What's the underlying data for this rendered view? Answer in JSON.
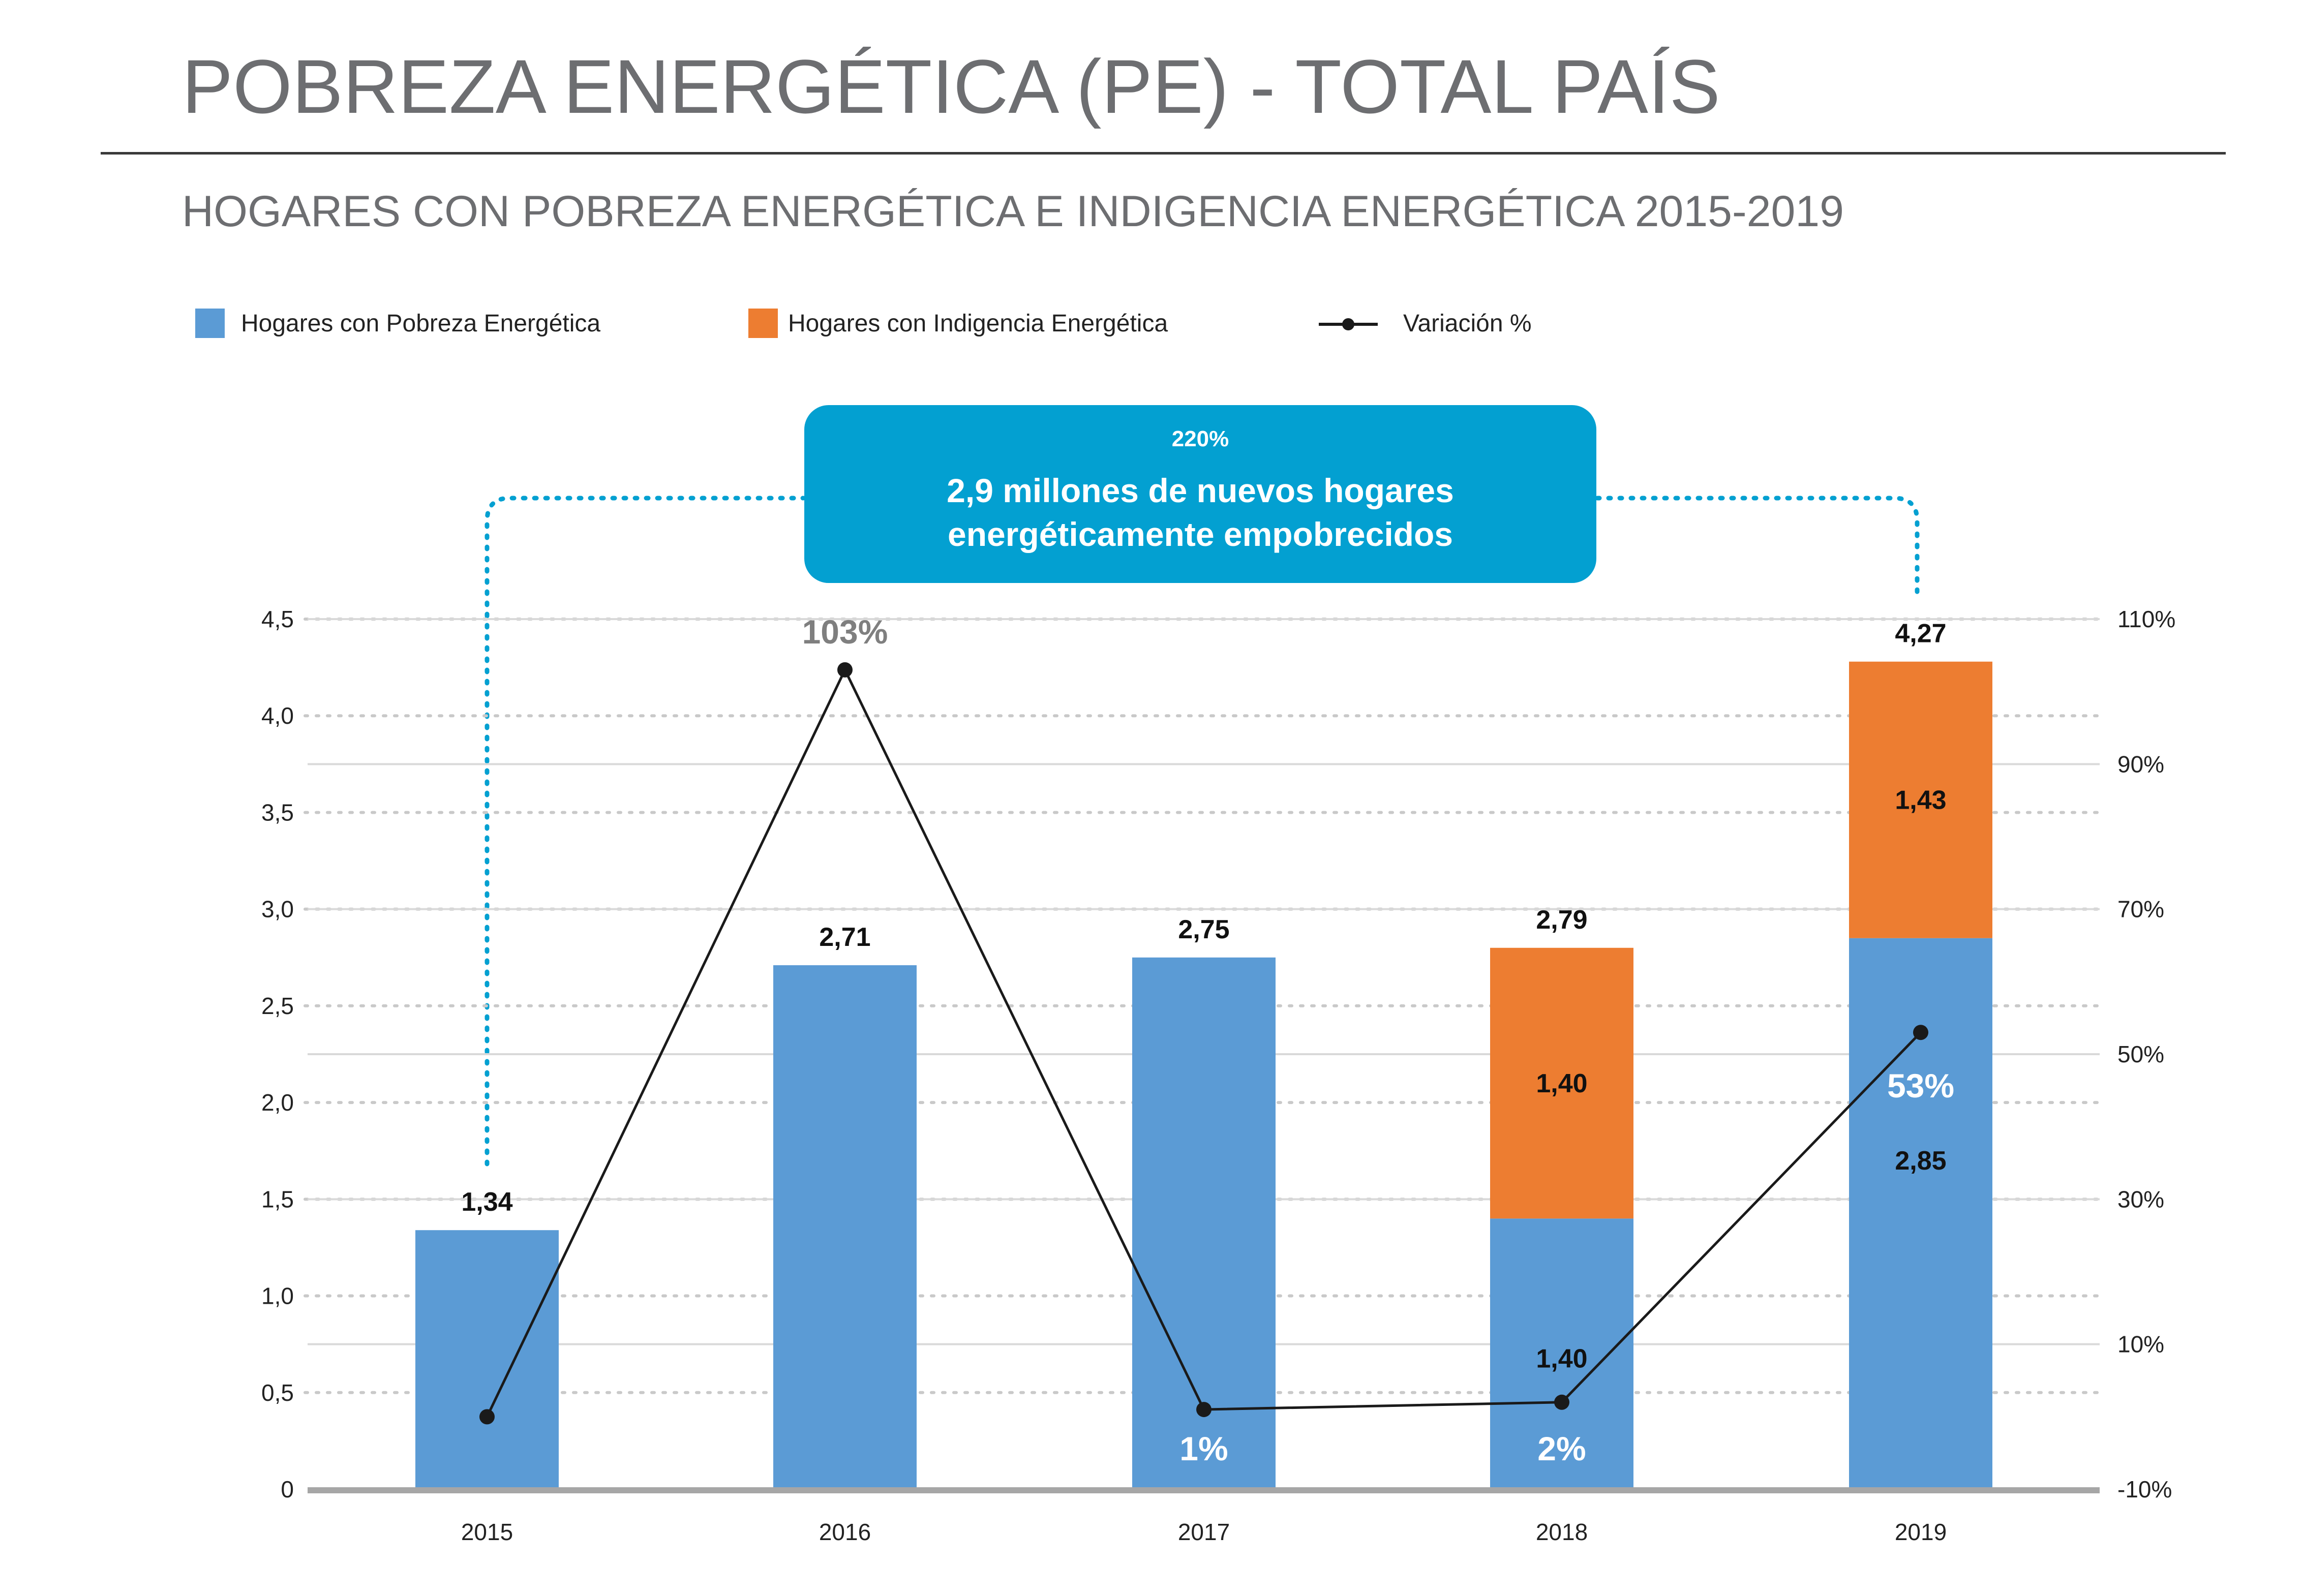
{
  "header": {
    "title": "POBREZA ENERGÉTICA (PE) - TOTAL PAÍS",
    "subtitle": "HOGARES CON POBREZA ENERGÉTICA E INDIGENCIA ENERGÉTICA 2015-2019"
  },
  "callout": {
    "percent": "220%",
    "line1": "2,9 millones de nuevos hogares",
    "line2": "energéticamente empobrecidos"
  },
  "colors": {
    "pobreza": "#5b9bd5",
    "indigencia": "#ed7d31",
    "variacion": "#1a1a1a",
    "callout": "#03a0d1",
    "axis": "#a6a6a6",
    "title": "#6d6e71"
  },
  "chart_data": {
    "type": "bar",
    "stacked": true,
    "categories": [
      "2015",
      "2016",
      "2017",
      "2018",
      "2019"
    ],
    "series": [
      {
        "name": "Hogares con Pobreza Energética",
        "type": "bar",
        "values": [
          1.34,
          2.71,
          2.75,
          1.4,
          2.85
        ]
      },
      {
        "name": "Hogares con Indigencia Energética",
        "type": "bar",
        "values": [
          0,
          0,
          0,
          1.4,
          1.43
        ]
      },
      {
        "name": "Variación %",
        "type": "line",
        "axis": "right",
        "values": [
          0,
          103,
          1,
          2,
          53
        ]
      }
    ],
    "totals": [
      "1,34",
      "2,71",
      "2,75",
      "2,79",
      "4,27"
    ],
    "segment_labels": {
      "pobreza": [
        "",
        "",
        "",
        "1,40",
        "2,85"
      ],
      "indigencia": [
        "",
        "",
        "",
        "1,40",
        "1,43"
      ]
    },
    "variation_labels": [
      "",
      "103%",
      "1%",
      "2%",
      "53%"
    ],
    "y_left": {
      "min": 0,
      "max": 4.5,
      "ticks": [
        "0",
        "0,5",
        "1,0",
        "1,5",
        "2,0",
        "2,5",
        "3,0",
        "3,5",
        "4,0",
        "4,5"
      ]
    },
    "y_right": {
      "min": -10,
      "max": 110,
      "ticks": [
        "-10%",
        "10%",
        "30%",
        "50%",
        "70%",
        "90%",
        "110%"
      ]
    },
    "grid": true,
    "legend_position": "top-left"
  }
}
